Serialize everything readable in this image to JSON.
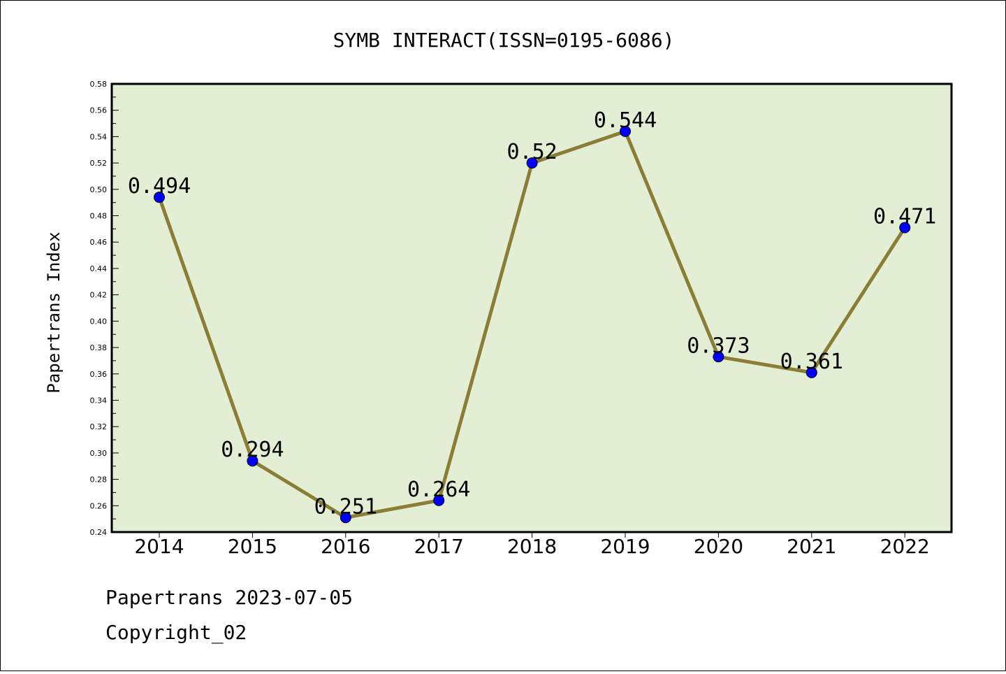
{
  "chart_data": {
    "type": "line",
    "title": "SYMB INTERACT(ISSN=0195-6086)",
    "ylabel": "Papertrans Index",
    "xlabel": "",
    "categories": [
      "2014",
      "2015",
      "2016",
      "2017",
      "2018",
      "2019",
      "2020",
      "2021",
      "2022"
    ],
    "values": [
      0.494,
      0.294,
      0.251,
      0.264,
      0.52,
      0.544,
      0.373,
      0.361,
      0.471
    ],
    "data_labels": [
      "0.494",
      "0.294",
      "0.251",
      "0.264",
      "0.52",
      "0.544",
      "0.373",
      "0.361",
      "0.471"
    ],
    "ylim": [
      0.24,
      0.58
    ],
    "yticks": [
      "0.24",
      "0.26",
      "0.28",
      "0.30",
      "0.32",
      "0.34",
      "0.36",
      "0.38",
      "0.40",
      "0.42",
      "0.44",
      "0.46",
      "0.48",
      "0.50",
      "0.52",
      "0.54",
      "0.56",
      "0.58"
    ],
    "grid": false,
    "colors": {
      "plot_background": "#e2efd5",
      "line": "#8b7d35",
      "marker": "#0000ff"
    }
  },
  "footer": {
    "line1": "Papertrans 2023-07-05",
    "line2": "Copyright_02"
  }
}
